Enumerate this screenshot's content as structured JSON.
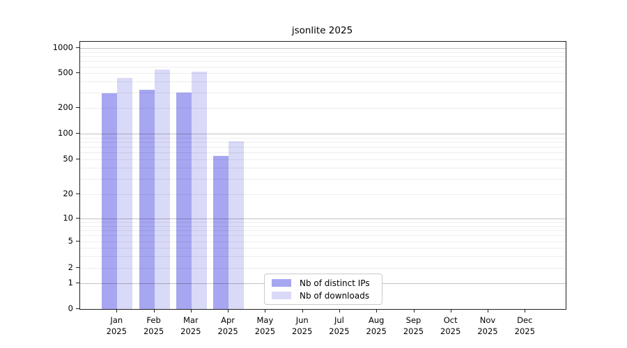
{
  "chart_data": {
    "type": "bar",
    "title": "jsonlite 2025",
    "categories": [
      "Jan",
      "Feb",
      "Mar",
      "Apr",
      "May",
      "Jun",
      "Jul",
      "Aug",
      "Sep",
      "Oct",
      "Nov",
      "Dec"
    ],
    "category_sublabel": "2025",
    "series": [
      {
        "name": "Nb of distinct IPs",
        "color": "#a6a6f1",
        "values": [
          295,
          320,
          300,
          55,
          0,
          0,
          0,
          0,
          0,
          0,
          0,
          0
        ]
      },
      {
        "name": "Nb of downloads",
        "color": "#d9d9f8",
        "values": [
          440,
          550,
          525,
          82,
          0,
          0,
          0,
          0,
          0,
          0,
          0,
          0
        ]
      }
    ],
    "yticks": [
      0,
      1,
      2,
      5,
      10,
      20,
      50,
      100,
      200,
      500,
      1000
    ],
    "ylim": [
      0,
      1000
    ],
    "yscale": "log-like with 0 baseline",
    "xlabel": "",
    "ylabel": "",
    "grid": true,
    "legend_position": "bottom-center",
    "colors": {
      "distinct_ips_bar": "#a6a6f1",
      "downloads_bar": "#d9d9f8",
      "grid_minor": "#ededed",
      "grid_major": "#bdbdbd",
      "frame": "#1f1f1f",
      "background": "#ffffff"
    }
  }
}
